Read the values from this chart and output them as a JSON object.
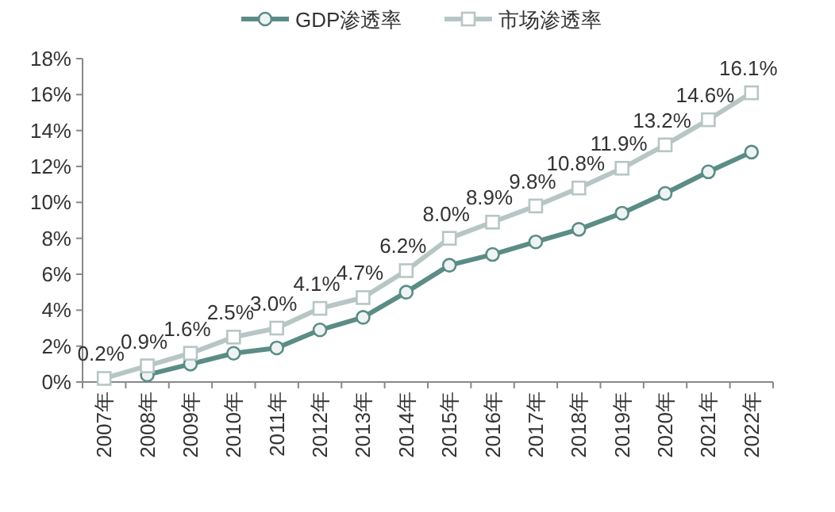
{
  "chart_data": {
    "type": "line",
    "categories": [
      "2007年",
      "2008年",
      "2009年",
      "2010年",
      "2011年",
      "2012年",
      "2013年",
      "2014年",
      "2015年",
      "2016年",
      "2017年",
      "2018年",
      "2019年",
      "2020年",
      "2021年",
      "2022年"
    ],
    "series": [
      {
        "name": "GDP渗透率",
        "color": "#5b8c86",
        "marker": "circle",
        "values": [
          null,
          0.4,
          1.0,
          1.6,
          1.9,
          2.9,
          3.6,
          5.0,
          6.5,
          7.1,
          7.8,
          8.5,
          9.4,
          10.5,
          11.7,
          12.8
        ]
      },
      {
        "name": "市场渗透率",
        "color": "#b7c6c4",
        "marker": "square",
        "values": [
          0.2,
          0.9,
          1.6,
          2.5,
          3.0,
          4.1,
          4.7,
          6.2,
          8.0,
          8.9,
          9.8,
          10.8,
          11.9,
          13.2,
          14.6,
          16.1
        ],
        "value_labels": [
          "0.2%",
          "0.9%",
          "1.6%",
          "2.5%",
          "3.0%",
          "4.1%",
          "4.7%",
          "6.2%",
          "8.0%",
          "8.9%",
          "9.8%",
          "10.8%",
          "11.9%",
          "13.2%",
          "14.6%",
          "16.1%"
        ]
      }
    ],
    "ylim": [
      0,
      18
    ],
    "yticks": [
      {
        "value": 0,
        "label": "0%"
      },
      {
        "value": 2,
        "label": "2%"
      },
      {
        "value": 4,
        "label": "4%"
      },
      {
        "value": 6,
        "label": "6%"
      },
      {
        "value": 8,
        "label": "8%"
      },
      {
        "value": 10,
        "label": "10%"
      },
      {
        "value": 12,
        "label": "12%"
      },
      {
        "value": 14,
        "label": "14%"
      },
      {
        "value": 16,
        "label": "16%"
      },
      {
        "value": 18,
        "label": "18%"
      }
    ],
    "grid": false,
    "legend": "top"
  }
}
